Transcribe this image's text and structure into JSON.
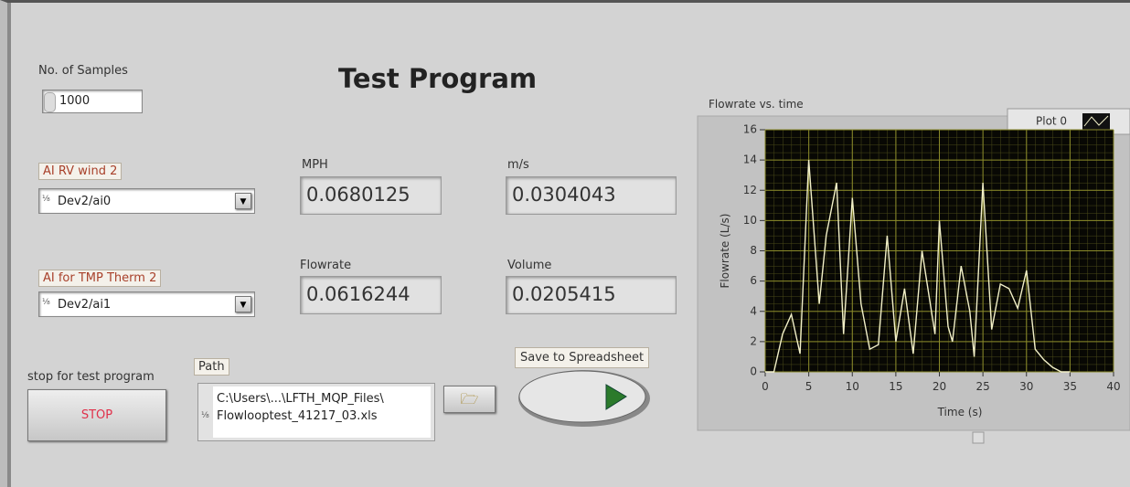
{
  "title": "Test Program",
  "samples": {
    "label": "No. of Samples",
    "value": "1000"
  },
  "channels": [
    {
      "label": "AI RV wind 2",
      "value": "Dev2/ai0"
    },
    {
      "label": "AI for TMP Therm 2",
      "value": "Dev2/ai1"
    }
  ],
  "indicators": [
    {
      "label": "MPH",
      "value": "0.0680125"
    },
    {
      "label": "m/s",
      "value": "0.0304043"
    },
    {
      "label": "Flowrate",
      "value": "0.0616244"
    },
    {
      "label": "Volume",
      "value": "0.0205415"
    }
  ],
  "stop": {
    "label": "stop for test program",
    "button": "STOP"
  },
  "path": {
    "label": "Path",
    "lines": [
      "C:\\Users\\...\\LFTH_MQP_Files\\",
      "Flowlooptest_41217_03.xls"
    ]
  },
  "save": {
    "label": "Save to Spreadsheet"
  },
  "chart_data": {
    "type": "line",
    "title": "Flowrate vs. time",
    "x_label": "Time (s)",
    "y_label": "Flowrate (L/s)",
    "legend": "Plot 0",
    "color": "#f2f0c8",
    "grid": true,
    "xlim": [
      0,
      40
    ],
    "ylim": [
      0,
      16
    ],
    "xticks": [
      0,
      5,
      10,
      15,
      20,
      25,
      30,
      35,
      40
    ],
    "yticks": [
      0,
      2,
      4,
      6,
      8,
      10,
      12,
      14,
      16
    ],
    "x": [
      0,
      1,
      2,
      3,
      4,
      5,
      6.2,
      7,
      8.2,
      9,
      10,
      11,
      12,
      13,
      14,
      15,
      16,
      17,
      18,
      19.5,
      20,
      21,
      21.5,
      22.5,
      23.5,
      24,
      25,
      26,
      27,
      28,
      29,
      30,
      31,
      32,
      33,
      34,
      35
    ],
    "values": [
      0,
      0,
      2.5,
      3.8,
      1.2,
      14,
      4.5,
      9,
      12.5,
      2.5,
      11.5,
      4.5,
      1.5,
      1.8,
      9,
      2,
      5.5,
      1.2,
      8,
      2.5,
      10,
      3,
      2,
      7,
      4,
      1,
      12.5,
      2.8,
      5.8,
      5.5,
      4.2,
      6.7,
      1.5,
      0.8,
      0.3,
      0,
      0
    ]
  }
}
